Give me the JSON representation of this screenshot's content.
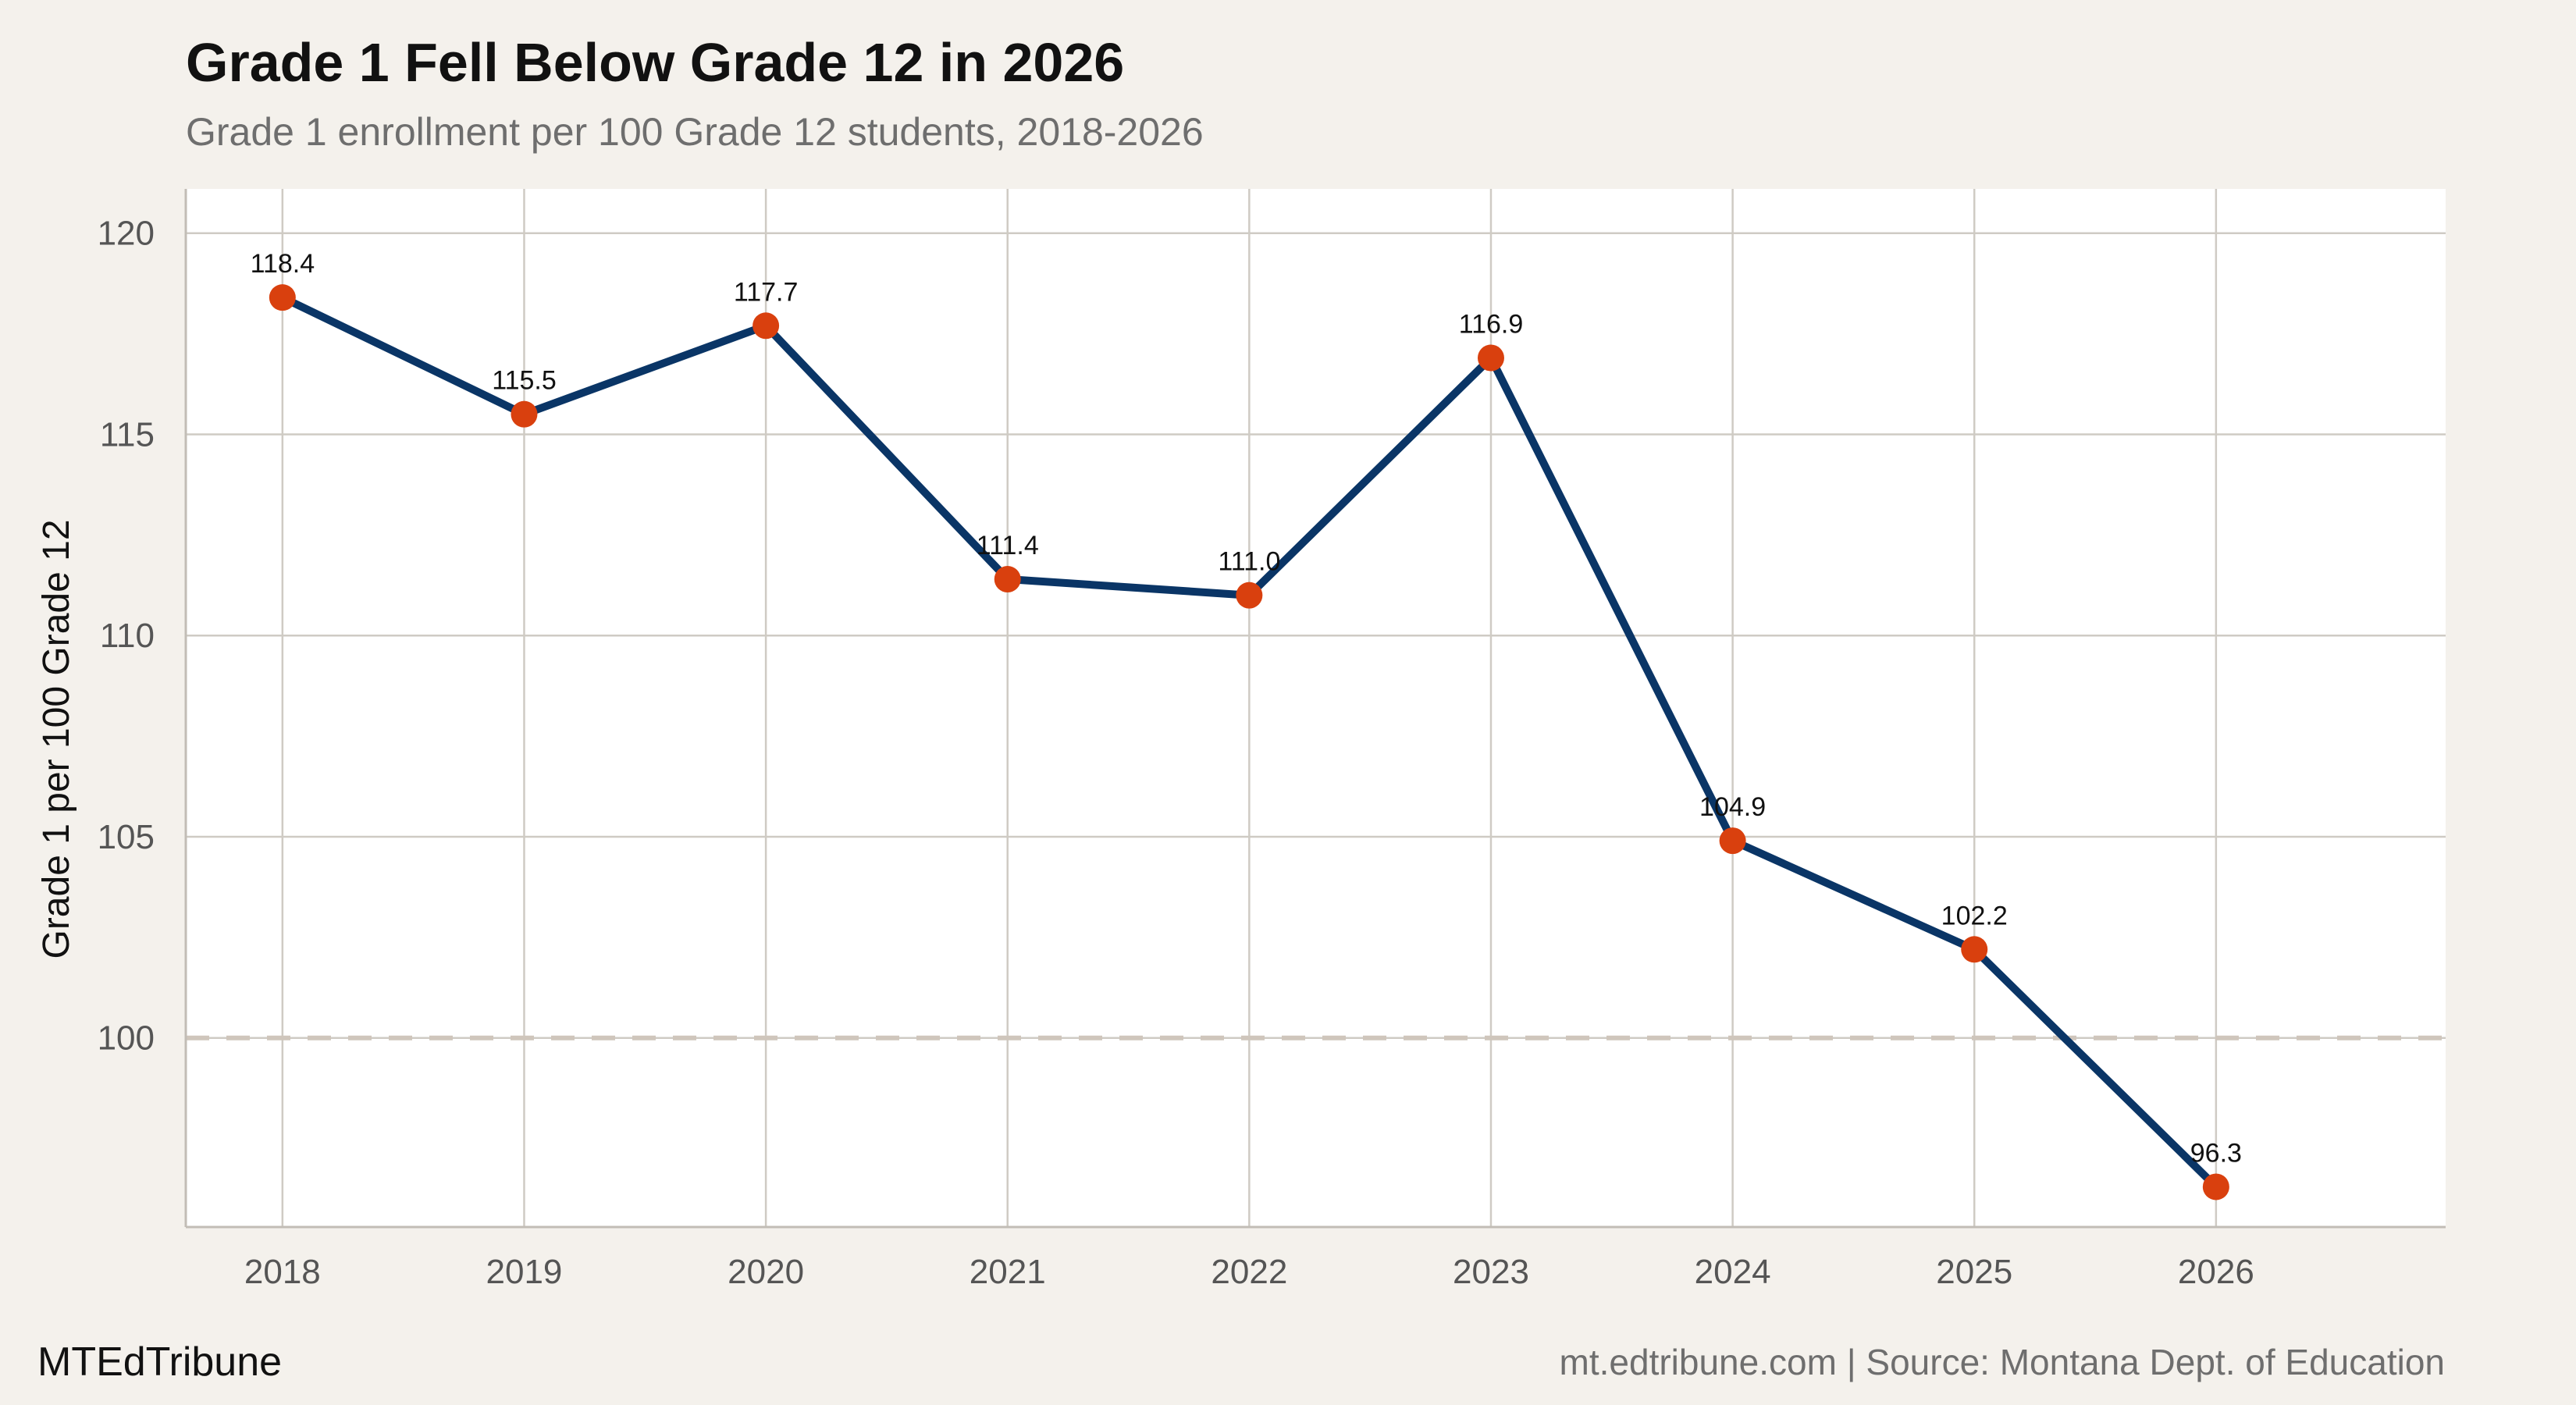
{
  "title": "Grade 1 Fell Below Grade 12 in 2026",
  "subtitle": "Grade 1 enrollment per 100 Grade 12 students, 2018-2026",
  "footer": {
    "brand": "MTEdTribune",
    "source": "mt.edtribune.com | Source: Montana Dept. of Education"
  },
  "colors": {
    "background": "#f4f1ec",
    "plot_background": "#ffffff",
    "line": "#0a3566",
    "points": "#d9400e",
    "grid": "#cfcbc4",
    "reference_line": "#cfc6bc"
  },
  "chart_data": {
    "type": "line",
    "x": [
      2018,
      2019,
      2020,
      2021,
      2022,
      2023,
      2024,
      2025,
      2026
    ],
    "series": [
      {
        "values": [
          118.4,
          115.5,
          117.7,
          111.4,
          111.0,
          116.9,
          104.9,
          102.2,
          96.3
        ]
      }
    ],
    "data_labels": [
      "118.4",
      "115.5",
      "117.7",
      "111.4",
      "111.0",
      "116.9",
      "104.9",
      "102.2",
      "96.3"
    ],
    "xlabel": "",
    "ylabel": "Grade 1 per 100 Grade 12",
    "yticks": [
      100,
      105,
      110,
      115,
      120
    ],
    "ylim": [
      95.3,
      121.1
    ],
    "xlim": [
      2017.6,
      2026.95
    ],
    "reference_line": {
      "value": 100,
      "style": "dashed"
    },
    "grid": true,
    "legend": "none"
  }
}
